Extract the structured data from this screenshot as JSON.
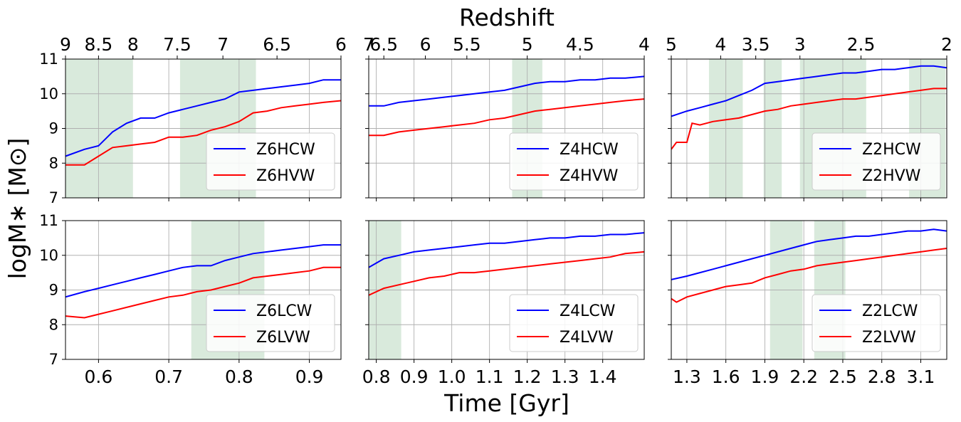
{
  "figure": {
    "top_title": "Redshift",
    "xlabel": "Time [Gyr]",
    "ylabel": "logM$_*$ [M$_\\odot$]",
    "ylabel_display": "logM∗ [M⊙]"
  },
  "chart_data": [
    {
      "type": "line",
      "name": "Z6 high",
      "xlim": [
        0.553,
        0.945
      ],
      "ylim": [
        7,
        11
      ],
      "yticks": [
        7,
        8,
        9,
        10,
        11
      ],
      "xticks": [],
      "top_ticks": [
        {
          "label": "9",
          "t": 0.553
        },
        {
          "label": "8.5",
          "t": 0.6
        },
        {
          "label": "8",
          "t": 0.649
        },
        {
          "label": "7.5",
          "t": 0.712
        },
        {
          "label": "7",
          "t": 0.777
        },
        {
          "label": "6.5",
          "t": 0.854
        },
        {
          "label": "6",
          "t": 0.945
        }
      ],
      "bands": [
        [
          0.553,
          0.649
        ],
        [
          0.716,
          0.824
        ]
      ],
      "series": [
        {
          "name": "Z6HCW",
          "color": "#0000ff",
          "x": [
            0.553,
            0.58,
            0.6,
            0.62,
            0.64,
            0.66,
            0.68,
            0.7,
            0.72,
            0.74,
            0.76,
            0.78,
            0.8,
            0.82,
            0.84,
            0.86,
            0.88,
            0.9,
            0.92,
            0.945
          ],
          "y": [
            8.2,
            8.4,
            8.5,
            8.9,
            9.15,
            9.3,
            9.3,
            9.45,
            9.55,
            9.65,
            9.75,
            9.85,
            10.05,
            10.1,
            10.15,
            10.2,
            10.25,
            10.3,
            10.4,
            10.4
          ]
        },
        {
          "name": "Z6HVW",
          "color": "#ff0000",
          "x": [
            0.553,
            0.58,
            0.6,
            0.62,
            0.64,
            0.66,
            0.68,
            0.7,
            0.72,
            0.74,
            0.76,
            0.78,
            0.8,
            0.82,
            0.84,
            0.86,
            0.88,
            0.9,
            0.92,
            0.945
          ],
          "y": [
            7.95,
            7.95,
            8.2,
            8.45,
            8.5,
            8.55,
            8.6,
            8.75,
            8.75,
            8.8,
            8.95,
            9.05,
            9.2,
            9.45,
            9.5,
            9.6,
            9.65,
            9.7,
            9.75,
            9.8
          ]
        }
      ]
    },
    {
      "type": "line",
      "name": "Z4 high",
      "xlim": [
        0.78,
        1.51
      ],
      "ylim": [
        7,
        11
      ],
      "yticks": [
        7,
        8,
        9,
        10,
        11
      ],
      "xticks": [],
      "top_ticks": [
        {
          "label": "7",
          "t": 0.78
        },
        {
          "label": "6.5",
          "t": 0.82
        },
        {
          "label": "6",
          "t": 0.93
        },
        {
          "label": "5.5",
          "t": 1.04
        },
        {
          "label": "5",
          "t": 1.2
        },
        {
          "label": "4.5",
          "t": 1.34
        },
        {
          "label": "4",
          "t": 1.51
        }
      ],
      "bands": [
        [
          1.16,
          1.24
        ]
      ],
      "series": [
        {
          "name": "Z4HCW",
          "color": "#0000ff",
          "x": [
            0.78,
            0.82,
            0.86,
            0.9,
            0.94,
            0.98,
            1.02,
            1.06,
            1.1,
            1.14,
            1.18,
            1.22,
            1.26,
            1.3,
            1.34,
            1.38,
            1.42,
            1.46,
            1.51
          ],
          "y": [
            9.65,
            9.65,
            9.75,
            9.8,
            9.85,
            9.9,
            9.95,
            10.0,
            10.05,
            10.1,
            10.2,
            10.3,
            10.35,
            10.35,
            10.4,
            10.4,
            10.45,
            10.45,
            10.5
          ]
        },
        {
          "name": "Z4HVW",
          "color": "#ff0000",
          "x": [
            0.78,
            0.82,
            0.86,
            0.9,
            0.94,
            0.98,
            1.02,
            1.06,
            1.1,
            1.14,
            1.18,
            1.22,
            1.26,
            1.3,
            1.34,
            1.38,
            1.42,
            1.46,
            1.51
          ],
          "y": [
            8.8,
            8.8,
            8.9,
            8.95,
            9.0,
            9.05,
            9.1,
            9.15,
            9.25,
            9.3,
            9.4,
            9.5,
            9.55,
            9.6,
            9.65,
            9.7,
            9.75,
            9.8,
            9.85
          ]
        }
      ]
    },
    {
      "type": "line",
      "name": "Z2 high",
      "xlim": [
        1.18,
        3.3
      ],
      "ylim": [
        7,
        11
      ],
      "yticks": [
        7,
        8,
        9,
        10,
        11
      ],
      "xticks": [],
      "top_ticks": [
        {
          "label": "5",
          "t": 1.18
        },
        {
          "label": "4",
          "t": 1.56
        },
        {
          "label": "3.5",
          "t": 1.83
        },
        {
          "label": "3",
          "t": 2.17
        },
        {
          "label": "2.5",
          "t": 2.64
        },
        {
          "label": "2",
          "t": 3.3
        }
      ],
      "bands": [
        [
          1.47,
          1.73
        ],
        [
          1.89,
          2.03
        ],
        [
          2.17,
          2.68
        ],
        [
          3.01,
          3.29
        ]
      ],
      "series": [
        {
          "name": "Z2HCW",
          "color": "#0000ff",
          "x": [
            1.18,
            1.3,
            1.4,
            1.5,
            1.6,
            1.7,
            1.8,
            1.9,
            2.0,
            2.1,
            2.2,
            2.3,
            2.4,
            2.5,
            2.6,
            2.7,
            2.8,
            2.9,
            3.0,
            3.1,
            3.2,
            3.3
          ],
          "y": [
            9.35,
            9.5,
            9.6,
            9.7,
            9.8,
            9.95,
            10.1,
            10.3,
            10.35,
            10.4,
            10.45,
            10.5,
            10.55,
            10.6,
            10.6,
            10.65,
            10.7,
            10.7,
            10.75,
            10.8,
            10.8,
            10.75
          ]
        },
        {
          "name": "Z2HVW",
          "color": "#ff0000",
          "x": [
            1.18,
            1.22,
            1.3,
            1.34,
            1.4,
            1.5,
            1.6,
            1.7,
            1.8,
            1.9,
            2.0,
            2.1,
            2.2,
            2.3,
            2.4,
            2.5,
            2.6,
            2.7,
            2.8,
            2.9,
            3.0,
            3.1,
            3.2,
            3.3
          ],
          "y": [
            8.4,
            8.6,
            8.6,
            9.15,
            9.1,
            9.2,
            9.25,
            9.3,
            9.4,
            9.5,
            9.55,
            9.65,
            9.7,
            9.75,
            9.8,
            9.85,
            9.85,
            9.9,
            9.95,
            10.0,
            10.05,
            10.1,
            10.15,
            10.15
          ]
        }
      ]
    },
    {
      "type": "line",
      "name": "Z6 low",
      "xlim": [
        0.553,
        0.945
      ],
      "ylim": [
        7,
        11
      ],
      "yticks": [
        7,
        8,
        9,
        10,
        11
      ],
      "xticks": [
        {
          "label": "0.6",
          "v": 0.6
        },
        {
          "label": "0.7",
          "v": 0.7
        },
        {
          "label": "0.8",
          "v": 0.8
        },
        {
          "label": "0.9",
          "v": 0.9
        }
      ],
      "bands": [
        [
          0.732,
          0.836
        ]
      ],
      "series": [
        {
          "name": "Z6LCW",
          "color": "#0000ff",
          "x": [
            0.553,
            0.58,
            0.6,
            0.62,
            0.64,
            0.66,
            0.68,
            0.7,
            0.72,
            0.74,
            0.76,
            0.78,
            0.8,
            0.82,
            0.84,
            0.86,
            0.88,
            0.9,
            0.92,
            0.945
          ],
          "y": [
            8.8,
            8.95,
            9.05,
            9.15,
            9.25,
            9.35,
            9.45,
            9.55,
            9.65,
            9.7,
            9.7,
            9.85,
            9.95,
            10.05,
            10.1,
            10.15,
            10.2,
            10.25,
            10.3,
            10.3
          ]
        },
        {
          "name": "Z6LVW",
          "color": "#ff0000",
          "x": [
            0.553,
            0.58,
            0.6,
            0.62,
            0.64,
            0.66,
            0.68,
            0.7,
            0.72,
            0.74,
            0.76,
            0.78,
            0.8,
            0.82,
            0.84,
            0.86,
            0.88,
            0.9,
            0.92,
            0.945
          ],
          "y": [
            8.25,
            8.2,
            8.3,
            8.4,
            8.5,
            8.6,
            8.7,
            8.8,
            8.85,
            8.95,
            9.0,
            9.1,
            9.2,
            9.35,
            9.4,
            9.45,
            9.5,
            9.55,
            9.65,
            9.65
          ]
        }
      ]
    },
    {
      "type": "line",
      "name": "Z4 low",
      "xlim": [
        0.78,
        1.51
      ],
      "ylim": [
        7,
        11
      ],
      "yticks": [
        7,
        8,
        9,
        10,
        11
      ],
      "xticks": [
        {
          "label": "0.8",
          "v": 0.8
        },
        {
          "label": "0.9",
          "v": 0.9
        },
        {
          "label": "1.0",
          "v": 1.0
        },
        {
          "label": "1.1",
          "v": 1.1
        },
        {
          "label": "1.2",
          "v": 1.2
        },
        {
          "label": "1.3",
          "v": 1.3
        },
        {
          "label": "1.4",
          "v": 1.4
        }
      ],
      "bands": [
        [
          0.78,
          0.866
        ]
      ],
      "series": [
        {
          "name": "Z4LCW",
          "color": "#0000ff",
          "x": [
            0.78,
            0.82,
            0.86,
            0.9,
            0.94,
            0.98,
            1.02,
            1.06,
            1.1,
            1.14,
            1.18,
            1.22,
            1.26,
            1.3,
            1.34,
            1.38,
            1.42,
            1.46,
            1.51
          ],
          "y": [
            9.65,
            9.9,
            10.0,
            10.1,
            10.15,
            10.2,
            10.25,
            10.3,
            10.35,
            10.35,
            10.4,
            10.45,
            10.5,
            10.5,
            10.55,
            10.55,
            10.6,
            10.6,
            10.65
          ]
        },
        {
          "name": "Z4LVW",
          "color": "#ff0000",
          "x": [
            0.78,
            0.82,
            0.86,
            0.9,
            0.94,
            0.98,
            1.02,
            1.06,
            1.1,
            1.14,
            1.18,
            1.22,
            1.26,
            1.3,
            1.34,
            1.38,
            1.42,
            1.46,
            1.51
          ],
          "y": [
            8.85,
            9.05,
            9.15,
            9.25,
            9.35,
            9.4,
            9.5,
            9.5,
            9.55,
            9.6,
            9.65,
            9.7,
            9.75,
            9.8,
            9.85,
            9.9,
            9.95,
            10.05,
            10.1
          ]
        }
      ]
    },
    {
      "type": "line",
      "name": "Z2 low",
      "xlim": [
        1.18,
        3.3
      ],
      "ylim": [
        7,
        11
      ],
      "yticks": [
        7,
        8,
        9,
        10,
        11
      ],
      "xticks": [
        {
          "label": "1.3",
          "v": 1.3
        },
        {
          "label": "1.6",
          "v": 1.6
        },
        {
          "label": "1.9",
          "v": 1.9
        },
        {
          "label": "2.2",
          "v": 2.2
        },
        {
          "label": "2.5",
          "v": 2.5
        },
        {
          "label": "2.8",
          "v": 2.8
        },
        {
          "label": "3.1",
          "v": 3.1
        }
      ],
      "bands": [
        [
          1.94,
          2.19
        ],
        [
          2.28,
          2.52
        ]
      ],
      "series": [
        {
          "name": "Z2LCW",
          "color": "#0000ff",
          "x": [
            1.18,
            1.3,
            1.4,
            1.5,
            1.6,
            1.7,
            1.8,
            1.9,
            2.0,
            2.1,
            2.2,
            2.3,
            2.4,
            2.5,
            2.6,
            2.7,
            2.8,
            2.9,
            3.0,
            3.1,
            3.2,
            3.3
          ],
          "y": [
            9.3,
            9.4,
            9.5,
            9.6,
            9.7,
            9.8,
            9.9,
            10.0,
            10.1,
            10.2,
            10.3,
            10.4,
            10.45,
            10.5,
            10.55,
            10.55,
            10.6,
            10.65,
            10.7,
            10.7,
            10.75,
            10.7
          ]
        },
        {
          "name": "Z2LVW",
          "color": "#ff0000",
          "x": [
            1.18,
            1.22,
            1.3,
            1.4,
            1.5,
            1.6,
            1.7,
            1.8,
            1.9,
            2.0,
            2.1,
            2.2,
            2.3,
            2.4,
            2.5,
            2.6,
            2.7,
            2.8,
            2.9,
            3.0,
            3.1,
            3.2,
            3.3
          ],
          "y": [
            8.75,
            8.65,
            8.8,
            8.9,
            9.0,
            9.1,
            9.15,
            9.2,
            9.35,
            9.45,
            9.55,
            9.6,
            9.7,
            9.75,
            9.8,
            9.85,
            9.9,
            9.95,
            10.0,
            10.05,
            10.1,
            10.15,
            10.2
          ]
        }
      ]
    }
  ]
}
